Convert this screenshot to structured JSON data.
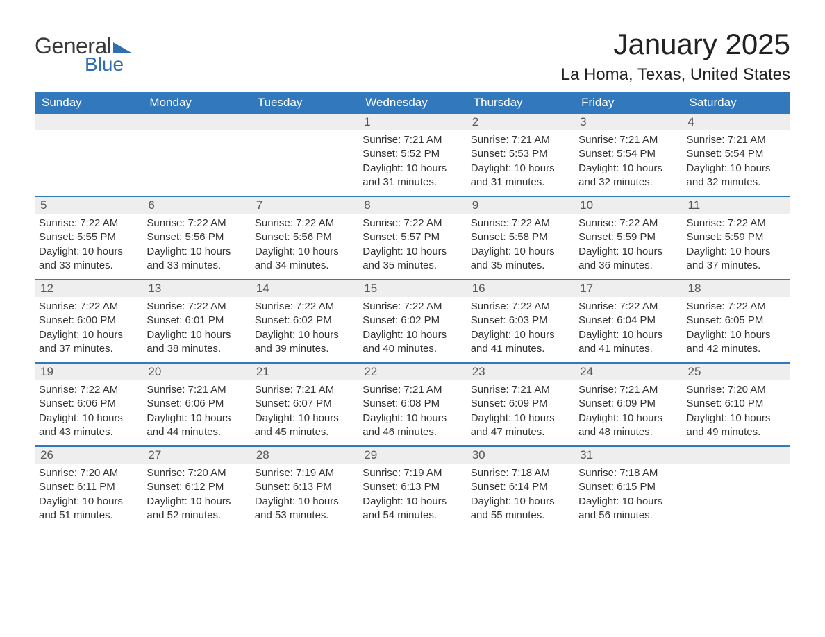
{
  "logo": {
    "text1": "General",
    "text2": "Blue"
  },
  "title": "January 2025",
  "location": "La Homa, Texas, United States",
  "colors": {
    "header_bg": "#3178bd",
    "header_text": "#ffffff",
    "daynum_bg": "#eeeeee",
    "week_border": "#3178bd",
    "body_text": "#333333",
    "logo_blue": "#2f6fb0"
  },
  "days_of_week": [
    "Sunday",
    "Monday",
    "Tuesday",
    "Wednesday",
    "Thursday",
    "Friday",
    "Saturday"
  ],
  "weeks": [
    [
      {
        "n": "",
        "sr": "",
        "ss": "",
        "dl": ""
      },
      {
        "n": "",
        "sr": "",
        "ss": "",
        "dl": ""
      },
      {
        "n": "",
        "sr": "",
        "ss": "",
        "dl": ""
      },
      {
        "n": "1",
        "sr": "Sunrise: 7:21 AM",
        "ss": "Sunset: 5:52 PM",
        "dl": "Daylight: 10 hours and 31 minutes."
      },
      {
        "n": "2",
        "sr": "Sunrise: 7:21 AM",
        "ss": "Sunset: 5:53 PM",
        "dl": "Daylight: 10 hours and 31 minutes."
      },
      {
        "n": "3",
        "sr": "Sunrise: 7:21 AM",
        "ss": "Sunset: 5:54 PM",
        "dl": "Daylight: 10 hours and 32 minutes."
      },
      {
        "n": "4",
        "sr": "Sunrise: 7:21 AM",
        "ss": "Sunset: 5:54 PM",
        "dl": "Daylight: 10 hours and 32 minutes."
      }
    ],
    [
      {
        "n": "5",
        "sr": "Sunrise: 7:22 AM",
        "ss": "Sunset: 5:55 PM",
        "dl": "Daylight: 10 hours and 33 minutes."
      },
      {
        "n": "6",
        "sr": "Sunrise: 7:22 AM",
        "ss": "Sunset: 5:56 PM",
        "dl": "Daylight: 10 hours and 33 minutes."
      },
      {
        "n": "7",
        "sr": "Sunrise: 7:22 AM",
        "ss": "Sunset: 5:56 PM",
        "dl": "Daylight: 10 hours and 34 minutes."
      },
      {
        "n": "8",
        "sr": "Sunrise: 7:22 AM",
        "ss": "Sunset: 5:57 PM",
        "dl": "Daylight: 10 hours and 35 minutes."
      },
      {
        "n": "9",
        "sr": "Sunrise: 7:22 AM",
        "ss": "Sunset: 5:58 PM",
        "dl": "Daylight: 10 hours and 35 minutes."
      },
      {
        "n": "10",
        "sr": "Sunrise: 7:22 AM",
        "ss": "Sunset: 5:59 PM",
        "dl": "Daylight: 10 hours and 36 minutes."
      },
      {
        "n": "11",
        "sr": "Sunrise: 7:22 AM",
        "ss": "Sunset: 5:59 PM",
        "dl": "Daylight: 10 hours and 37 minutes."
      }
    ],
    [
      {
        "n": "12",
        "sr": "Sunrise: 7:22 AM",
        "ss": "Sunset: 6:00 PM",
        "dl": "Daylight: 10 hours and 37 minutes."
      },
      {
        "n": "13",
        "sr": "Sunrise: 7:22 AM",
        "ss": "Sunset: 6:01 PM",
        "dl": "Daylight: 10 hours and 38 minutes."
      },
      {
        "n": "14",
        "sr": "Sunrise: 7:22 AM",
        "ss": "Sunset: 6:02 PM",
        "dl": "Daylight: 10 hours and 39 minutes."
      },
      {
        "n": "15",
        "sr": "Sunrise: 7:22 AM",
        "ss": "Sunset: 6:02 PM",
        "dl": "Daylight: 10 hours and 40 minutes."
      },
      {
        "n": "16",
        "sr": "Sunrise: 7:22 AM",
        "ss": "Sunset: 6:03 PM",
        "dl": "Daylight: 10 hours and 41 minutes."
      },
      {
        "n": "17",
        "sr": "Sunrise: 7:22 AM",
        "ss": "Sunset: 6:04 PM",
        "dl": "Daylight: 10 hours and 41 minutes."
      },
      {
        "n": "18",
        "sr": "Sunrise: 7:22 AM",
        "ss": "Sunset: 6:05 PM",
        "dl": "Daylight: 10 hours and 42 minutes."
      }
    ],
    [
      {
        "n": "19",
        "sr": "Sunrise: 7:22 AM",
        "ss": "Sunset: 6:06 PM",
        "dl": "Daylight: 10 hours and 43 minutes."
      },
      {
        "n": "20",
        "sr": "Sunrise: 7:21 AM",
        "ss": "Sunset: 6:06 PM",
        "dl": "Daylight: 10 hours and 44 minutes."
      },
      {
        "n": "21",
        "sr": "Sunrise: 7:21 AM",
        "ss": "Sunset: 6:07 PM",
        "dl": "Daylight: 10 hours and 45 minutes."
      },
      {
        "n": "22",
        "sr": "Sunrise: 7:21 AM",
        "ss": "Sunset: 6:08 PM",
        "dl": "Daylight: 10 hours and 46 minutes."
      },
      {
        "n": "23",
        "sr": "Sunrise: 7:21 AM",
        "ss": "Sunset: 6:09 PM",
        "dl": "Daylight: 10 hours and 47 minutes."
      },
      {
        "n": "24",
        "sr": "Sunrise: 7:21 AM",
        "ss": "Sunset: 6:09 PM",
        "dl": "Daylight: 10 hours and 48 minutes."
      },
      {
        "n": "25",
        "sr": "Sunrise: 7:20 AM",
        "ss": "Sunset: 6:10 PM",
        "dl": "Daylight: 10 hours and 49 minutes."
      }
    ],
    [
      {
        "n": "26",
        "sr": "Sunrise: 7:20 AM",
        "ss": "Sunset: 6:11 PM",
        "dl": "Daylight: 10 hours and 51 minutes."
      },
      {
        "n": "27",
        "sr": "Sunrise: 7:20 AM",
        "ss": "Sunset: 6:12 PM",
        "dl": "Daylight: 10 hours and 52 minutes."
      },
      {
        "n": "28",
        "sr": "Sunrise: 7:19 AM",
        "ss": "Sunset: 6:13 PM",
        "dl": "Daylight: 10 hours and 53 minutes."
      },
      {
        "n": "29",
        "sr": "Sunrise: 7:19 AM",
        "ss": "Sunset: 6:13 PM",
        "dl": "Daylight: 10 hours and 54 minutes."
      },
      {
        "n": "30",
        "sr": "Sunrise: 7:18 AM",
        "ss": "Sunset: 6:14 PM",
        "dl": "Daylight: 10 hours and 55 minutes."
      },
      {
        "n": "31",
        "sr": "Sunrise: 7:18 AM",
        "ss": "Sunset: 6:15 PM",
        "dl": "Daylight: 10 hours and 56 minutes."
      },
      {
        "n": "",
        "sr": "",
        "ss": "",
        "dl": ""
      }
    ]
  ]
}
